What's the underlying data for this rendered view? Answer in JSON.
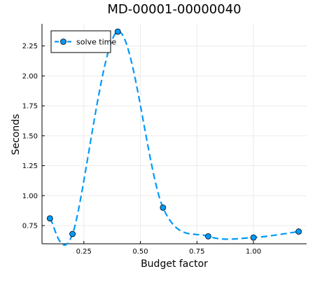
{
  "chart_data": {
    "type": "line",
    "title": "MD-00001-00000040",
    "xlabel": "Budget factor",
    "ylabel": "Seconds",
    "xlim": [
      0.065,
      1.235
    ],
    "ylim": [
      0.598,
      2.435
    ],
    "x_ticks": [
      0.25,
      0.5,
      0.75,
      1.0
    ],
    "x_tick_labels": [
      "0.25",
      "0.50",
      "0.75",
      "1.00"
    ],
    "y_ticks": [
      0.75,
      1.0,
      1.25,
      1.5,
      1.75,
      2.0,
      2.25
    ],
    "y_tick_labels": [
      "0.75",
      "1.00",
      "1.25",
      "1.50",
      "1.75",
      "2.00",
      "2.25"
    ],
    "grid": true,
    "legend_position": "top-left",
    "series": [
      {
        "name": "solve time",
        "color": "#009AF9",
        "line_style": "dashed",
        "marker": "circle",
        "x": [
          0.1,
          0.2,
          0.4,
          0.6,
          0.8,
          1.0,
          1.2
        ],
        "y": [
          0.81,
          0.68,
          2.37,
          0.9,
          0.66,
          0.65,
          0.7
        ]
      }
    ]
  }
}
